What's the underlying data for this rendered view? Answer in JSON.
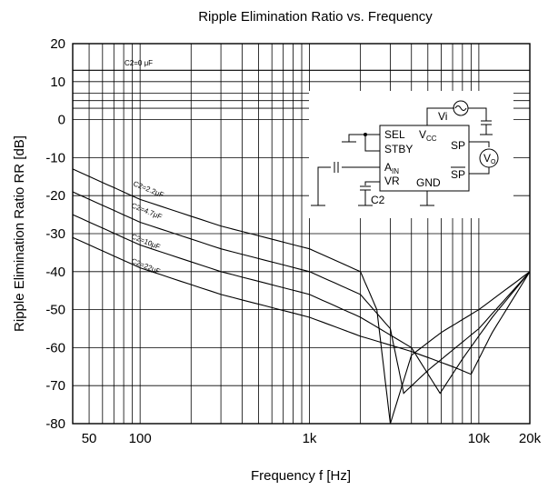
{
  "chart_data": {
    "type": "line",
    "title": "Ripple Elimination Ratio vs. Frequency",
    "xlabel": "Frequency f [Hz]",
    "ylabel": "Ripple Elimination Ratio RR [dB]",
    "x_scale": "log",
    "xlim": [
      40,
      20000
    ],
    "ylim": [
      -80,
      20
    ],
    "x_ticks": [
      {
        "value": 50,
        "label": "50"
      },
      {
        "value": 100,
        "label": "100"
      },
      {
        "value": 1000,
        "label": "1k"
      },
      {
        "value": 10000,
        "label": "10k"
      },
      {
        "value": 20000,
        "label": "20k"
      }
    ],
    "y_ticks": [
      {
        "value": 20,
        "label": "20"
      },
      {
        "value": 10,
        "label": "10"
      },
      {
        "value": 0,
        "label": "0"
      },
      {
        "value": -10,
        "label": "-10"
      },
      {
        "value": -20,
        "label": "-20"
      },
      {
        "value": -30,
        "label": "-30"
      },
      {
        "value": -40,
        "label": "-40"
      },
      {
        "value": -50,
        "label": "-50"
      },
      {
        "value": -60,
        "label": "-60"
      },
      {
        "value": -70,
        "label": "-70"
      },
      {
        "value": -80,
        "label": "-80"
      }
    ],
    "grid": true,
    "series": [
      {
        "name": "C2=0 μF",
        "x": [
          40,
          20000
        ],
        "y": [
          13,
          13
        ]
      },
      {
        "name": "C2=2.2μF",
        "x": [
          40,
          100,
          300,
          1000,
          2000,
          2500,
          3000,
          4000,
          6000,
          10000,
          20000
        ],
        "y": [
          -13,
          -21,
          -28,
          -34,
          -40,
          -50,
          -80,
          -62,
          -56,
          -50,
          -40
        ]
      },
      {
        "name": "C2=4.7μF",
        "x": [
          40,
          100,
          300,
          1000,
          2000,
          3000,
          3600,
          5000,
          10000,
          20000
        ],
        "y": [
          -19,
          -27,
          -34,
          -40,
          -46,
          -55,
          -72,
          -66,
          -55,
          -40
        ]
      },
      {
        "name": "C2=10μF",
        "x": [
          40,
          100,
          300,
          1000,
          2000,
          4000,
          5900,
          8000,
          12000,
          20000
        ],
        "y": [
          -25,
          -33,
          -40,
          -46,
          -52,
          -60,
          -72,
          -63,
          -52,
          -40
        ]
      },
      {
        "name": "C2=22μF",
        "x": [
          40,
          100,
          300,
          1000,
          2000,
          4000,
          7000,
          9000,
          12000,
          20000
        ],
        "y": [
          -31,
          -39,
          -46,
          -52,
          -57,
          -61,
          -65,
          -67,
          -56,
          -40
        ]
      }
    ]
  },
  "schematic": {
    "vi": "Vi",
    "vcc": "V",
    "vcc_sub": "CC",
    "sel": "SEL",
    "stby": "STBY",
    "ain": "A",
    "ain_sub": "IN",
    "vr": "VR",
    "c2": "C2",
    "gnd": "GND",
    "sp": "SP",
    "sp_bar": "SP",
    "vo": "V",
    "vo_sub": "O"
  }
}
